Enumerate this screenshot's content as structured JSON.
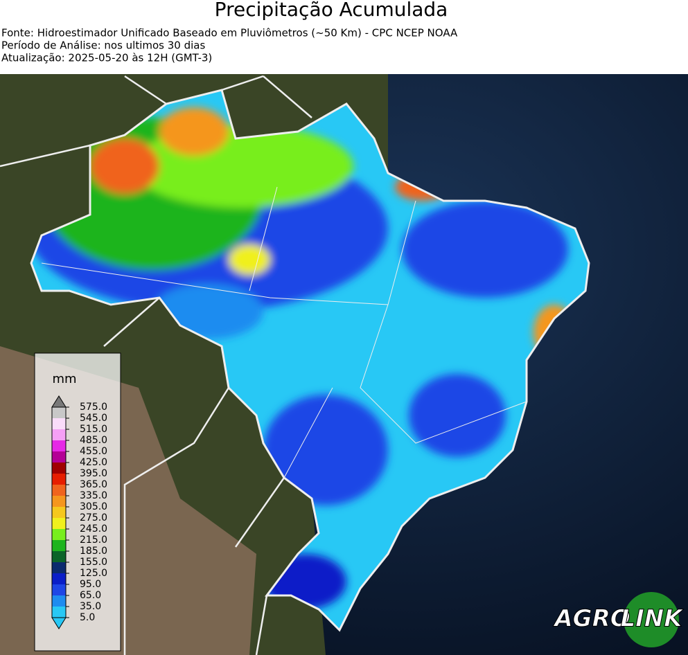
{
  "header": {
    "title": "Precipitação Acumulada",
    "lines": [
      "Fonte: Hidroestimador Unificado Baseado em Pluviômetros (~50 Km) - CPC NCEP NOAA",
      "Período de Análise: nos ultimos 30 dias",
      "Atualização: 2025-05-20 às 12H (GMT-3)"
    ]
  },
  "colorbar": {
    "unit": "mm",
    "ticks": [
      {
        "value": 5,
        "label": "5.0"
      },
      {
        "value": 35,
        "label": "35.0"
      },
      {
        "value": 65,
        "label": "65.0"
      },
      {
        "value": 95,
        "label": "95.0"
      },
      {
        "value": 125,
        "label": "125.0"
      },
      {
        "value": 155,
        "label": "155.0"
      },
      {
        "value": 185,
        "label": "185.0"
      },
      {
        "value": 215,
        "label": "215.0"
      },
      {
        "value": 245,
        "label": "245.0"
      },
      {
        "value": 275,
        "label": "275.0"
      },
      {
        "value": 305,
        "label": "305.0"
      },
      {
        "value": 335,
        "label": "335.0"
      },
      {
        "value": 365,
        "label": "365.0"
      },
      {
        "value": 395,
        "label": "395.0"
      },
      {
        "value": 425,
        "label": "425.0"
      },
      {
        "value": 455,
        "label": "455.0"
      },
      {
        "value": 485,
        "label": "485.0"
      },
      {
        "value": 515,
        "label": "515.0"
      },
      {
        "value": 545,
        "label": "545.0"
      },
      {
        "value": 575,
        "label": "575.0"
      }
    ],
    "colors": [
      "#28c8f5",
      "#1e8cf0",
      "#1e46e6",
      "#0a1ec8",
      "#0a2a6e",
      "#0a6428",
      "#1eb41e",
      "#78ee1e",
      "#f0f01e",
      "#f5c81e",
      "#f5961e",
      "#f0641e",
      "#e61e00",
      "#a00000",
      "#b40096",
      "#e628e6",
      "#f5a0f5",
      "#fadcfa",
      "#c8c8c8"
    ],
    "under_color": "#28c8f5",
    "over_color": "#787878"
  },
  "logo": {
    "left": "AGRO",
    "right": "LINK"
  }
}
